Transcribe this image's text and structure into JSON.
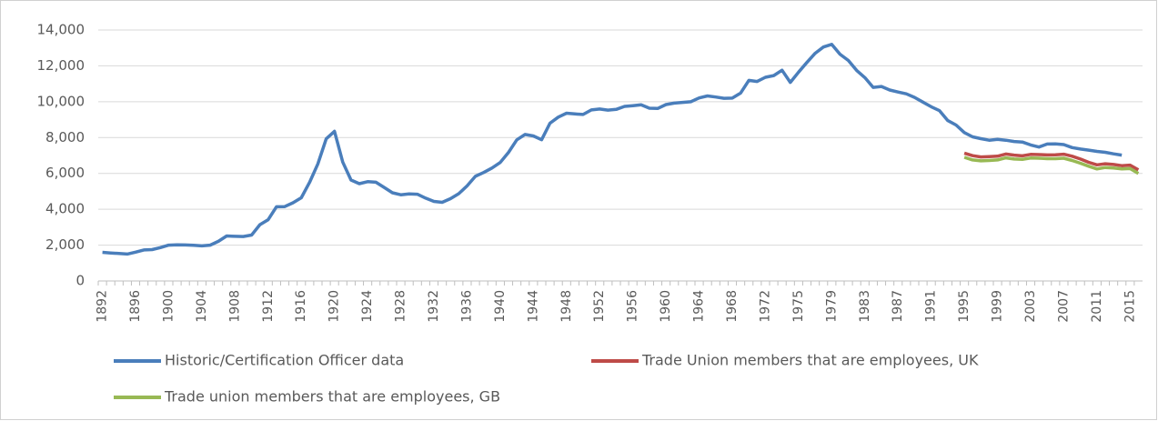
{
  "chart_data": {
    "type": "line",
    "categories": [
      "1892",
      null,
      null,
      null,
      "1896",
      null,
      null,
      null,
      "1900",
      null,
      null,
      null,
      "1904",
      null,
      null,
      null,
      "1908",
      null,
      null,
      null,
      "1912",
      null,
      null,
      null,
      "1916",
      null,
      null,
      null,
      "1920",
      null,
      null,
      null,
      "1924",
      null,
      null,
      null,
      "1928",
      null,
      null,
      null,
      "1932",
      null,
      null,
      null,
      "1936",
      null,
      null,
      null,
      "1940",
      null,
      null,
      null,
      "1944",
      null,
      null,
      null,
      "1948",
      null,
      null,
      null,
      "1952",
      null,
      null,
      null,
      "1956",
      null,
      null,
      null,
      "1960",
      null,
      null,
      null,
      "1964",
      null,
      null,
      null,
      "1968",
      null,
      null,
      null,
      "1972",
      null,
      null,
      null,
      "1975",
      null,
      null,
      null,
      "1979",
      null,
      null,
      null,
      "1983",
      null,
      null,
      null,
      "1987",
      null,
      null,
      null,
      "1991",
      null,
      null,
      null,
      "1995",
      null,
      null,
      null,
      "1999",
      null,
      null,
      null,
      "2003",
      null,
      null,
      null,
      "2007",
      null,
      null,
      null,
      "2011",
      null,
      null,
      null,
      "2015",
      null
    ],
    "series": [
      {
        "name": "Historic/Certification Officer data",
        "color": "#4a7ebb",
        "values": [
          1600,
          1560,
          1530,
          1500,
          1610,
          1730,
          1750,
          1860,
          2000,
          2020,
          2010,
          1990,
          1960,
          2000,
          2210,
          2510,
          2490,
          2480,
          2560,
          3140,
          3420,
          4140,
          4150,
          4360,
          4640,
          5500,
          6530,
          7930,
          8350,
          6630,
          5630,
          5430,
          5540,
          5510,
          5220,
          4920,
          4810,
          4860,
          4840,
          4620,
          4440,
          4390,
          4590,
          4870,
          5300,
          5840,
          6050,
          6300,
          6610,
          7170,
          7870,
          8170,
          8090,
          7880,
          8800,
          9140,
          9360,
          9320,
          9290,
          9540,
          9590,
          9530,
          9570,
          9740,
          9780,
          9830,
          9640,
          9620,
          9840,
          9920,
          9960,
          10000,
          10210,
          10320,
          10260,
          10190,
          10200,
          10480,
          11190,
          11130,
          11360,
          11460,
          11760,
          11080,
          11650,
          12190,
          12700,
          13050,
          13200,
          12650,
          12300,
          11750,
          11340,
          10800,
          10850,
          10650,
          10540,
          10440,
          10240,
          9980,
          9720,
          9500,
          8950,
          8700,
          8280,
          8040,
          7940,
          7850,
          7900,
          7850,
          7780,
          7750,
          7590,
          7470,
          7640,
          7650,
          7610,
          7440,
          7360,
          7300,
          7230,
          7180,
          7090,
          7020,
          null,
          null
        ]
      },
      {
        "name": "Trade Union members that are employees, UK",
        "color": "#be4b48",
        "values": [
          null,
          null,
          null,
          null,
          null,
          null,
          null,
          null,
          null,
          null,
          null,
          null,
          null,
          null,
          null,
          null,
          null,
          null,
          null,
          null,
          null,
          null,
          null,
          null,
          null,
          null,
          null,
          null,
          null,
          null,
          null,
          null,
          null,
          null,
          null,
          null,
          null,
          null,
          null,
          null,
          null,
          null,
          null,
          null,
          null,
          null,
          null,
          null,
          null,
          null,
          null,
          null,
          null,
          null,
          null,
          null,
          null,
          null,
          null,
          null,
          null,
          null,
          null,
          null,
          null,
          null,
          null,
          null,
          null,
          null,
          null,
          null,
          null,
          null,
          null,
          null,
          null,
          null,
          null,
          null,
          null,
          null,
          null,
          null,
          null,
          null,
          null,
          null,
          null,
          null,
          null,
          null,
          null,
          null,
          null,
          null,
          null,
          null,
          null,
          null,
          null,
          null,
          null,
          null,
          7130,
          6990,
          6920,
          6940,
          6960,
          7080,
          7020,
          6980,
          7060,
          7050,
          7030,
          7040,
          7070,
          6960,
          6800,
          6620,
          6480,
          6540,
          6500,
          6430,
          6460,
          6200
        ]
      },
      {
        "name": "Trade union members that are employees, GB",
        "color": "#98b954",
        "values": [
          null,
          null,
          null,
          null,
          null,
          null,
          null,
          null,
          null,
          null,
          null,
          null,
          null,
          null,
          null,
          null,
          null,
          null,
          null,
          null,
          null,
          null,
          null,
          null,
          null,
          null,
          null,
          null,
          null,
          null,
          null,
          null,
          null,
          null,
          null,
          null,
          null,
          null,
          null,
          null,
          null,
          null,
          null,
          null,
          null,
          null,
          null,
          null,
          null,
          null,
          null,
          null,
          null,
          null,
          null,
          null,
          null,
          null,
          null,
          null,
          null,
          null,
          null,
          null,
          null,
          null,
          null,
          null,
          null,
          null,
          null,
          null,
          null,
          null,
          null,
          null,
          null,
          null,
          null,
          null,
          null,
          null,
          null,
          null,
          null,
          null,
          null,
          null,
          null,
          null,
          null,
          null,
          null,
          null,
          null,
          null,
          null,
          null,
          null,
          null,
          null,
          null,
          null,
          null,
          6900,
          6750,
          6700,
          6720,
          6750,
          6870,
          6800,
          6780,
          6860,
          6850,
          6820,
          6820,
          6850,
          6720,
          6570,
          6400,
          6250,
          6330,
          6300,
          6250,
          6270,
          6000
        ]
      }
    ],
    "ylim": [
      0,
      14000
    ],
    "yticks": [
      0,
      {
        "value": 2000,
        "label": "2,000"
      },
      {
        "value": 4000,
        "label": "4,000"
      },
      {
        "value": 6000,
        "label": "6,000"
      },
      {
        "value": 8000,
        "label": "8,000"
      },
      {
        "value": 10000,
        "label": "10,000"
      },
      {
        "value": 12000,
        "label": "12,000"
      },
      {
        "value": 14000,
        "label": "14,000"
      }
    ],
    "grid": true
  }
}
